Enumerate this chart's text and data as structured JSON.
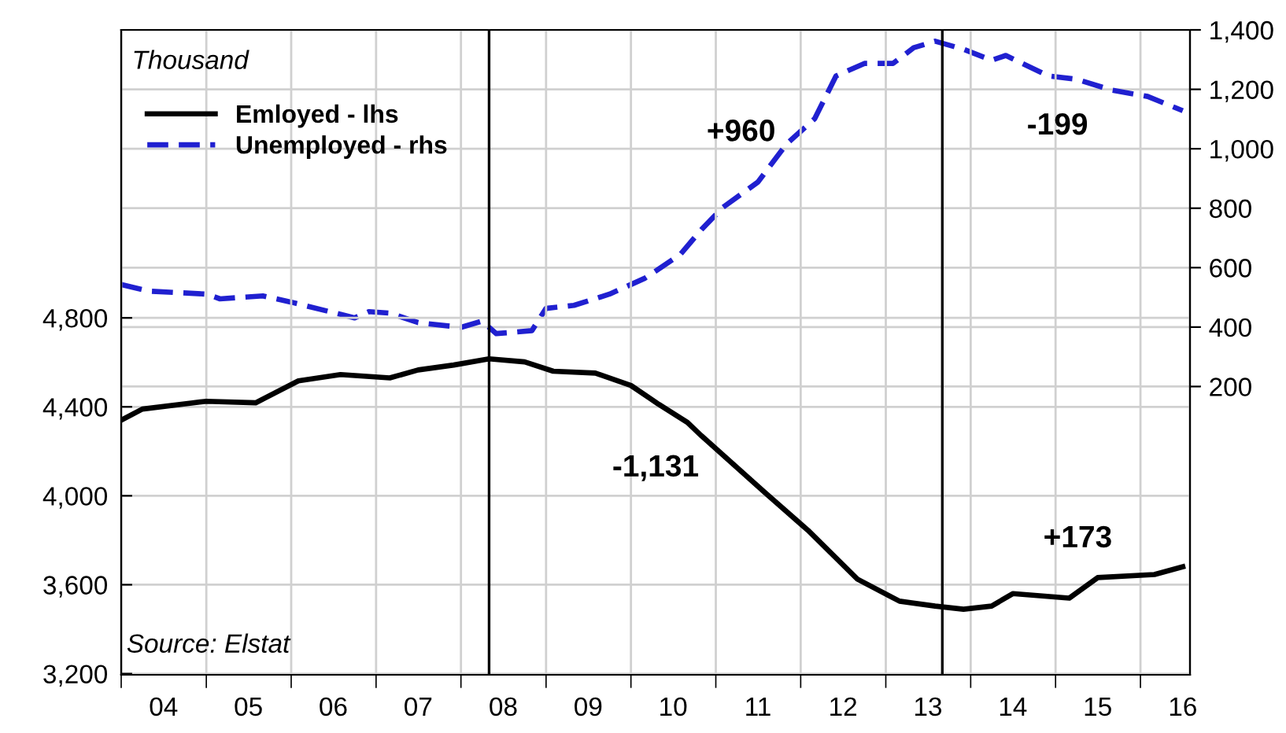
{
  "chart_data": {
    "type": "line",
    "annotations": [
      "Thousand",
      "+960",
      "-199",
      "-1,131",
      "+173",
      "Source: Elstat"
    ],
    "series": [
      {
        "name": "Emloyed - lhs",
        "color": "#000000",
        "line_style": "solid",
        "x": [
          "2004-01",
          "2004-04",
          "2005-01",
          "2005-08",
          "2006-02",
          "2006-08",
          "2007-03",
          "2007-07",
          "2007-12",
          "2008-05",
          "2008-10",
          "2009-02",
          "2009-08",
          "2010-01",
          "2010-05",
          "2010-09",
          "2010-11",
          "2011-08",
          "2012-02",
          "2012-09",
          "2013-03",
          "2013-08",
          "2013-12",
          "2014-04",
          "2014-07",
          "2015-03",
          "2015-07",
          "2016-03",
          "2016-07"
        ],
        "values": [
          4340,
          4390,
          4425,
          4418,
          4517,
          4545,
          4530,
          4566,
          4588,
          4616,
          4602,
          4560,
          4552,
          4496,
          4411,
          4330,
          4269,
          4014,
          3845,
          3625,
          3526,
          3504,
          3490,
          3504,
          3560,
          3540,
          3632,
          3646,
          3681
        ]
      },
      {
        "name": "Unemployed - rhs",
        "color": "#2020d0",
        "line_style": "dashed",
        "axis": "y2",
        "x": [
          "2004-01",
          "2004-05",
          "2005-01",
          "2005-03",
          "2005-09",
          "2006-01",
          "2006-10",
          "2006-12",
          "2007-03",
          "2007-07",
          "2008-01",
          "2008-04",
          "2008-06",
          "2008-11",
          "2009-01",
          "2009-05",
          "2009-10",
          "2010-03",
          "2010-08",
          "2010-11",
          "2011-02",
          "2011-07",
          "2011-11",
          "2012-03",
          "2012-06",
          "2012-10",
          "2013-02",
          "2013-05",
          "2013-08",
          "2013-12",
          "2014-04",
          "2014-06",
          "2014-12",
          "2015-04",
          "2015-09",
          "2016-02",
          "2016-07"
        ],
        "values": [
          543,
          521,
          511,
          495,
          505,
          484,
          431,
          452,
          447,
          415,
          399,
          420,
          378,
          388,
          463,
          473,
          511,
          564,
          644,
          729,
          803,
          888,
          1016,
          1101,
          1245,
          1287,
          1287,
          1340,
          1362,
          1335,
          1298,
          1314,
          1245,
          1234,
          1197,
          1176,
          1128
        ]
      }
    ],
    "xlim": [
      "2004-01-01",
      "2016-08-01"
    ],
    "xticks": [
      {
        "value": "2004-01-01",
        "label": null
      },
      {
        "value": "2004-07-01",
        "label": "04"
      },
      {
        "value": "2005-01-01",
        "label": null
      },
      {
        "value": "2005-07-01",
        "label": "05"
      },
      {
        "value": "2006-01-01",
        "label": null
      },
      {
        "value": "2006-07-01",
        "label": "06"
      },
      {
        "value": "2007-01-01",
        "label": null
      },
      {
        "value": "2007-07-01",
        "label": "07"
      },
      {
        "value": "2008-01-01",
        "label": null
      },
      {
        "value": "2008-07-01",
        "label": "08"
      },
      {
        "value": "2009-01-01",
        "label": null
      },
      {
        "value": "2009-07-01",
        "label": "09"
      },
      {
        "value": "2010-01-01",
        "label": null
      },
      {
        "value": "2010-07-01",
        "label": "10"
      },
      {
        "value": "2011-01-01",
        "label": null
      },
      {
        "value": "2011-07-01",
        "label": "11"
      },
      {
        "value": "2012-01-01",
        "label": null
      },
      {
        "value": "2012-07-01",
        "label": "12"
      },
      {
        "value": "2013-01-01",
        "label": null
      },
      {
        "value": "2013-07-01",
        "label": "13"
      },
      {
        "value": "2014-01-01",
        "label": null
      },
      {
        "value": "2014-07-01",
        "label": "14"
      },
      {
        "value": "2015-01-01",
        "label": null
      },
      {
        "value": "2015-07-01",
        "label": "15"
      },
      {
        "value": "2016-01-01",
        "label": null
      },
      {
        "value": "2016-07-01",
        "label": "16"
      }
    ],
    "ylim": [
      3195,
      6095
    ],
    "yticks": [
      {
        "value": 3200,
        "label": "3,200"
      },
      {
        "value": 3600,
        "label": "3,600"
      },
      {
        "value": 4000,
        "label": "4,000"
      },
      {
        "value": 4400,
        "label": "4,400"
      },
      {
        "value": 4800,
        "label": "4,800"
      }
    ],
    "y2lim": [
      -770,
      1400
    ],
    "y2ticks": [
      200,
      400,
      600,
      800,
      {
        "value": 1000,
        "label": "1,000"
      },
      {
        "value": 1200,
        "label": "1,200"
      },
      {
        "value": 1400,
        "label": "1,400"
      }
    ],
    "ref_lines": [
      {
        "axis": "x",
        "value": "2008-05-01",
        "color": "#000000",
        "line_style": "solid"
      },
      {
        "axis": "x",
        "value": "2013-09-01",
        "color": "#000000",
        "line_style": "solid"
      }
    ],
    "grid": true,
    "legend": "top left"
  }
}
